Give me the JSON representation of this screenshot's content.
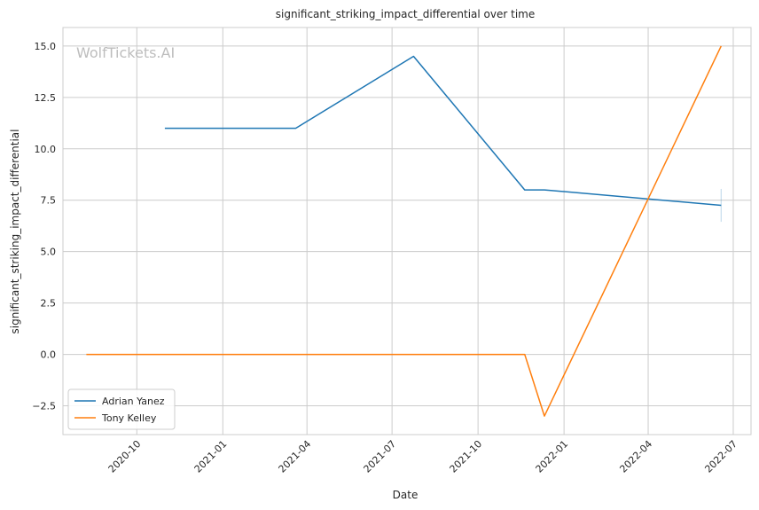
{
  "chart_data": {
    "type": "line",
    "title": "significant_striking_impact_differential over time",
    "xlabel": "Date",
    "ylabel": "significant_striking_impact_differential",
    "watermark": "WolfTickets.AI",
    "grid": true,
    "legend_position": "bottom-left",
    "xlim": [
      "2020-07-14",
      "2022-07-20"
    ],
    "ylim": [
      -3.9,
      15.9
    ],
    "x_ticks": [
      "2020-10",
      "2021-01",
      "2021-04",
      "2021-07",
      "2021-10",
      "2022-01",
      "2022-04",
      "2022-07"
    ],
    "y_ticks": [
      "15.0",
      "12.5",
      "10.0",
      "7.5",
      "5.0",
      "2.5",
      "0.0",
      "−2.5"
    ],
    "series": [
      {
        "name": "Adrian Yanez",
        "color": "#1f77b4",
        "points": [
          {
            "x": "2020-10-31",
            "y": 11.0
          },
          {
            "x": "2021-03-20",
            "y": 11.0
          },
          {
            "x": "2021-07-24",
            "y": 14.5
          },
          {
            "x": "2021-11-20",
            "y": 8.0
          },
          {
            "x": "2021-12-11",
            "y": 8.0
          },
          {
            "x": "2022-06-18",
            "y": 7.25
          }
        ]
      },
      {
        "name": "Tony Kelley",
        "color": "#ff7f0e",
        "points": [
          {
            "x": "2020-08-08",
            "y": 0.0
          },
          {
            "x": "2021-11-20",
            "y": 0.0
          },
          {
            "x": "2021-12-11",
            "y": -3.0
          },
          {
            "x": "2022-06-18",
            "y": 15.0
          }
        ]
      }
    ]
  }
}
